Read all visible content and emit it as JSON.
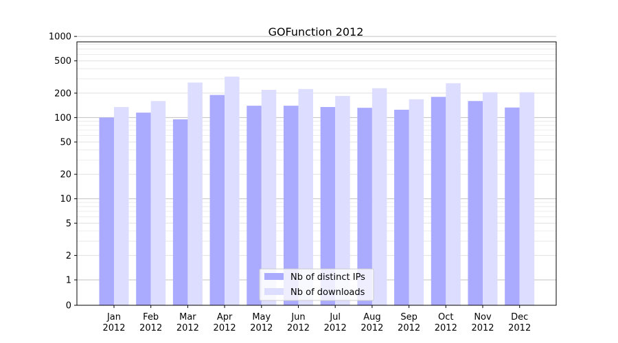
{
  "chart_data": {
    "type": "bar",
    "title": "GOFunction 2012",
    "categories": [
      {
        "month": "Jan",
        "year": "2012"
      },
      {
        "month": "Feb",
        "year": "2012"
      },
      {
        "month": "Mar",
        "year": "2012"
      },
      {
        "month": "Apr",
        "year": "2012"
      },
      {
        "month": "May",
        "year": "2012"
      },
      {
        "month": "Jun",
        "year": "2012"
      },
      {
        "month": "Jul",
        "year": "2012"
      },
      {
        "month": "Aug",
        "year": "2012"
      },
      {
        "month": "Sep",
        "year": "2012"
      },
      {
        "month": "Oct",
        "year": "2012"
      },
      {
        "month": "Nov",
        "year": "2012"
      },
      {
        "month": "Dec",
        "year": "2012"
      }
    ],
    "series": [
      {
        "name": "Nb of distinct IPs",
        "color": "#aaaaff",
        "values": [
          100,
          115,
          95,
          190,
          140,
          140,
          135,
          132,
          125,
          180,
          160,
          133
        ]
      },
      {
        "name": "Nb of downloads",
        "color": "#ddddff",
        "values": [
          135,
          160,
          270,
          320,
          220,
          225,
          185,
          230,
          168,
          265,
          205,
          205
        ]
      }
    ],
    "y_scale": "symlog",
    "y_ticks": [
      0,
      1,
      2,
      5,
      10,
      20,
      50,
      100,
      200,
      500,
      1000
    ],
    "ylim": [
      0,
      1400
    ],
    "grid": "horizontal",
    "legend_position": "lower center",
    "xlabel": "",
    "ylabel": ""
  }
}
